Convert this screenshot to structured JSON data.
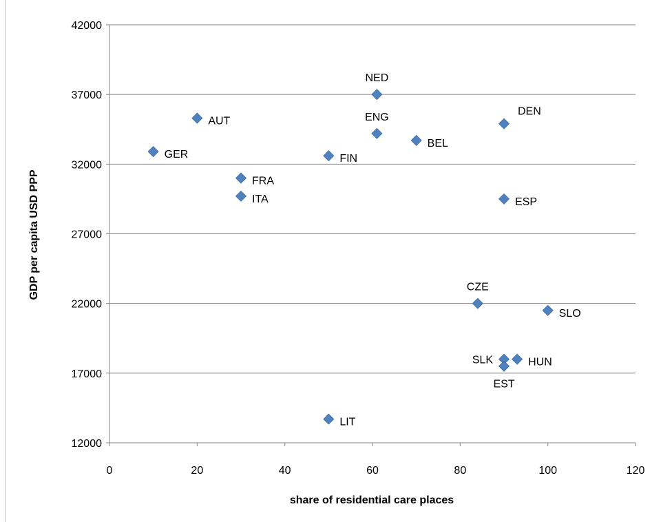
{
  "chart_data": {
    "type": "scatter",
    "title": "",
    "xlabel": "share  of residential care places",
    "ylabel": "GDP per capita USD PPP",
    "xlim": [
      0,
      120
    ],
    "ylim": [
      12000,
      42000
    ],
    "x_ticks": [
      0,
      20,
      40,
      60,
      80,
      100,
      120
    ],
    "y_ticks": [
      12000,
      17000,
      22000,
      27000,
      32000,
      37000,
      42000
    ],
    "grid": "horizontal",
    "legend": "none",
    "marker": "diamond",
    "marker_color": "#4F81BD",
    "points": [
      {
        "label": "GER",
        "x": 10,
        "y": 32900,
        "label_pos": "right"
      },
      {
        "label": "AUT",
        "x": 20,
        "y": 35300,
        "label_pos": "right"
      },
      {
        "label": "FRA",
        "x": 30,
        "y": 31000,
        "label_pos": "right"
      },
      {
        "label": "ITA",
        "x": 30,
        "y": 29700,
        "label_pos": "right"
      },
      {
        "label": "FIN",
        "x": 50,
        "y": 32600,
        "label_pos": "right"
      },
      {
        "label": "NED",
        "x": 61,
        "y": 37000,
        "label_pos": "above"
      },
      {
        "label": "ENG",
        "x": 61,
        "y": 34200,
        "label_pos": "above"
      },
      {
        "label": "BEL",
        "x": 70,
        "y": 33700,
        "label_pos": "right"
      },
      {
        "label": "DEN",
        "x": 90,
        "y": 34900,
        "label_pos": "above-right"
      },
      {
        "label": "ESP",
        "x": 90,
        "y": 29500,
        "label_pos": "right"
      },
      {
        "label": "CZE",
        "x": 84,
        "y": 22000,
        "label_pos": "above"
      },
      {
        "label": "SLO",
        "x": 100,
        "y": 21500,
        "label_pos": "right"
      },
      {
        "label": "SLK",
        "x": 90,
        "y": 18000,
        "label_pos": "left"
      },
      {
        "label": "HUN",
        "x": 93,
        "y": 18000,
        "label_pos": "right"
      },
      {
        "label": "EST",
        "x": 90,
        "y": 17500,
        "label_pos": "below"
      },
      {
        "label": "LIT",
        "x": 50,
        "y": 13700,
        "label_pos": "right"
      }
    ]
  }
}
